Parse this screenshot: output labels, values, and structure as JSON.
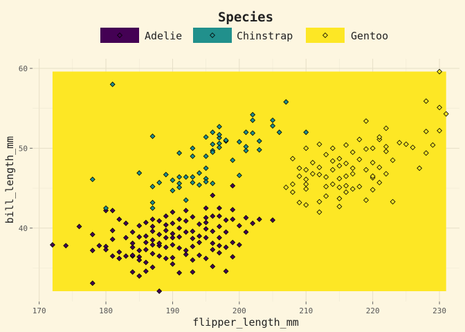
{
  "chart_data": {
    "type": "scatter",
    "xlabel": "flipper_length_mm",
    "ylabel": "bill_length_mm",
    "xlim": [
      169,
      233
    ],
    "ylim": [
      30.8,
      61.2
    ],
    "xticks": [
      170,
      180,
      190,
      200,
      210,
      220,
      230
    ],
    "yticks": [
      40,
      50,
      60
    ],
    "grid": true,
    "legend": {
      "title": "Species",
      "position": "top"
    },
    "background_rect": {
      "x": [
        172,
        231
      ],
      "y": [
        32.1,
        59.6
      ],
      "color": "#fde725"
    },
    "series": [
      {
        "name": "Adelie",
        "color": "#440154",
        "points": [
          [
            172,
            37.9
          ],
          [
            174,
            37.8
          ],
          [
            176,
            40.2
          ],
          [
            178,
            37.2
          ],
          [
            178,
            39.2
          ],
          [
            178,
            33.1
          ],
          [
            179,
            37.8
          ],
          [
            180,
            42.2
          ],
          [
            180,
            37.7
          ],
          [
            180,
            37.3
          ],
          [
            181,
            42.2
          ],
          [
            181,
            36.5
          ],
          [
            181,
            39.7
          ],
          [
            181,
            38.6
          ],
          [
            182,
            36.2
          ],
          [
            182,
            41.1
          ],
          [
            182,
            37.0
          ],
          [
            183,
            36.5
          ],
          [
            183,
            40.6
          ],
          [
            183,
            38.8
          ],
          [
            184,
            36.5
          ],
          [
            184,
            36.6
          ],
          [
            184,
            34.5
          ],
          [
            184,
            39.5
          ],
          [
            184,
            37.6
          ],
          [
            184,
            38.1
          ],
          [
            185,
            34.0
          ],
          [
            185,
            36.4
          ],
          [
            185,
            37.2
          ],
          [
            185,
            40.3
          ],
          [
            185,
            36.0
          ],
          [
            185,
            38.9
          ],
          [
            186,
            39.0
          ],
          [
            186,
            35.7
          ],
          [
            186,
            38.2
          ],
          [
            186,
            40.7
          ],
          [
            186,
            37.3
          ],
          [
            186,
            34.6
          ],
          [
            187,
            38.5
          ],
          [
            187,
            37.9
          ],
          [
            187,
            41.1
          ],
          [
            187,
            36.8
          ],
          [
            187,
            40.2
          ],
          [
            187,
            39.6
          ],
          [
            187,
            35.1
          ],
          [
            188,
            37.8
          ],
          [
            188,
            32.1
          ],
          [
            188,
            39.2
          ],
          [
            188,
            36.5
          ],
          [
            188,
            40.9
          ],
          [
            188,
            38.1
          ],
          [
            189,
            38.8
          ],
          [
            189,
            36.2
          ],
          [
            189,
            40.4
          ],
          [
            189,
            39.7
          ],
          [
            189,
            41.5
          ],
          [
            189,
            37.6
          ],
          [
            190,
            35.5
          ],
          [
            190,
            36.3
          ],
          [
            190,
            38.8
          ],
          [
            190,
            40.6
          ],
          [
            190,
            42.0
          ],
          [
            190,
            39.3
          ],
          [
            190,
            37.9
          ],
          [
            191,
            34.4
          ],
          [
            191,
            40.0
          ],
          [
            191,
            37.5
          ],
          [
            191,
            41.1
          ],
          [
            191,
            38.9
          ],
          [
            192,
            36.7
          ],
          [
            192,
            39.5
          ],
          [
            192,
            42.2
          ],
          [
            192,
            37.2
          ],
          [
            192,
            40.9
          ],
          [
            193,
            34.5
          ],
          [
            193,
            36.0
          ],
          [
            193,
            38.7
          ],
          [
            193,
            41.4
          ],
          [
            193,
            39.6
          ],
          [
            193,
            37.7
          ],
          [
            194,
            38.2
          ],
          [
            194,
            39.0
          ],
          [
            194,
            40.5
          ],
          [
            194,
            36.6
          ],
          [
            195,
            41.3
          ],
          [
            195,
            38.8
          ],
          [
            195,
            36.2
          ],
          [
            195,
            40.7
          ],
          [
            195,
            39.9
          ],
          [
            195,
            42.5
          ],
          [
            196,
            37.3
          ],
          [
            196,
            39.6
          ],
          [
            196,
            41.5
          ],
          [
            196,
            38.1
          ],
          [
            196,
            44.1
          ],
          [
            196,
            35.2
          ],
          [
            197,
            38.8
          ],
          [
            197,
            42.5
          ],
          [
            197,
            40.2
          ],
          [
            197,
            36.9
          ],
          [
            197,
            37.8
          ],
          [
            198,
            34.6
          ],
          [
            198,
            39.5
          ],
          [
            198,
            41.0
          ],
          [
            198,
            37.6
          ],
          [
            199,
            38.2
          ],
          [
            199,
            42.3
          ],
          [
            199,
            36.4
          ],
          [
            200,
            40.3
          ],
          [
            200,
            37.9
          ],
          [
            201,
            41.3
          ],
          [
            201,
            39.5
          ],
          [
            202,
            40.6
          ],
          [
            203,
            41.1
          ],
          [
            205,
            41.0
          ],
          [
            199,
            45.3
          ],
          [
            199,
            41.1
          ],
          [
            197,
            41.5
          ]
        ]
      },
      {
        "name": "Chinstrap",
        "color": "#21908c",
        "points": [
          [
            178,
            46.1
          ],
          [
            180,
            42.5
          ],
          [
            181,
            58.0
          ],
          [
            185,
            46.9
          ],
          [
            187,
            43.2
          ],
          [
            187,
            42.5
          ],
          [
            187,
            45.2
          ],
          [
            187,
            51.5
          ],
          [
            188,
            45.7
          ],
          [
            189,
            46.7
          ],
          [
            190,
            46.0
          ],
          [
            190,
            44.7
          ],
          [
            191,
            45.1
          ],
          [
            191,
            46.4
          ],
          [
            191,
            49.4
          ],
          [
            191,
            45.6
          ],
          [
            192,
            43.5
          ],
          [
            192,
            46.4
          ],
          [
            193,
            46.4
          ],
          [
            193,
            45.7
          ],
          [
            193,
            49.0
          ],
          [
            193,
            50.0
          ],
          [
            194,
            46.9
          ],
          [
            194,
            45.4
          ],
          [
            195,
            51.4
          ],
          [
            195,
            46.2
          ],
          [
            195,
            49.0
          ],
          [
            195,
            47.5
          ],
          [
            195,
            45.8
          ],
          [
            196,
            50.5
          ],
          [
            196,
            49.7
          ],
          [
            196,
            45.6
          ],
          [
            196,
            52.0
          ],
          [
            196,
            49.5
          ],
          [
            197,
            50.6
          ],
          [
            197,
            51.3
          ],
          [
            197,
            52.7
          ],
          [
            197,
            51.7
          ],
          [
            197,
            50.1
          ],
          [
            198,
            50.9
          ],
          [
            198,
            51.0
          ],
          [
            199,
            48.5
          ],
          [
            200,
            46.6
          ],
          [
            200,
            50.8
          ],
          [
            201,
            49.7
          ],
          [
            201,
            50.2
          ],
          [
            201,
            52.0
          ],
          [
            202,
            53.5
          ],
          [
            202,
            51.9
          ],
          [
            202,
            54.2
          ],
          [
            203,
            50.9
          ],
          [
            203,
            49.8
          ],
          [
            205,
            53.5
          ],
          [
            205,
            52.8
          ],
          [
            206,
            52.0
          ],
          [
            207,
            55.8
          ],
          [
            210,
            52.0
          ]
        ]
      },
      {
        "name": "Gentoo",
        "color": "#fde725",
        "points": [
          [
            207,
            45.1
          ],
          [
            208,
            44.5
          ],
          [
            208,
            45.5
          ],
          [
            208,
            48.7
          ],
          [
            209,
            47.5
          ],
          [
            209,
            43.2
          ],
          [
            209,
            46.5
          ],
          [
            210,
            50.0
          ],
          [
            210,
            47.3
          ],
          [
            210,
            46.1
          ],
          [
            210,
            42.9
          ],
          [
            210,
            44.9
          ],
          [
            211,
            46.8
          ],
          [
            211,
            48.2
          ],
          [
            212,
            43.3
          ],
          [
            212,
            47.6
          ],
          [
            212,
            46.7
          ],
          [
            212,
            50.5
          ],
          [
            213,
            45.2
          ],
          [
            213,
            49.2
          ],
          [
            213,
            46.4
          ],
          [
            213,
            44.0
          ],
          [
            214,
            47.3
          ],
          [
            214,
            50.0
          ],
          [
            214,
            45.5
          ],
          [
            214,
            48.4
          ],
          [
            215,
            46.2
          ],
          [
            215,
            48.7
          ],
          [
            215,
            43.7
          ],
          [
            215,
            47.8
          ],
          [
            215,
            45.1
          ],
          [
            215,
            42.7
          ],
          [
            216,
            46.5
          ],
          [
            216,
            50.4
          ],
          [
            216,
            48.1
          ],
          [
            216,
            45.3
          ],
          [
            217,
            44.9
          ],
          [
            217,
            47.5
          ],
          [
            217,
            49.5
          ],
          [
            217,
            46.8
          ],
          [
            218,
            45.2
          ],
          [
            218,
            51.1
          ],
          [
            218,
            48.6
          ],
          [
            219,
            43.5
          ],
          [
            219,
            47.3
          ],
          [
            219,
            49.9
          ],
          [
            219,
            53.4
          ],
          [
            220,
            46.3
          ],
          [
            220,
            50.0
          ],
          [
            220,
            44.8
          ],
          [
            220,
            48.2
          ],
          [
            221,
            47.6
          ],
          [
            221,
            51.1
          ],
          [
            221,
            45.7
          ],
          [
            222,
            46.8
          ],
          [
            222,
            49.6
          ],
          [
            222,
            52.5
          ],
          [
            222,
            50.2
          ],
          [
            223,
            43.3
          ],
          [
            223,
            48.5
          ],
          [
            224,
            50.7
          ],
          [
            225,
            50.5
          ],
          [
            226,
            50.1
          ],
          [
            228,
            52.1
          ],
          [
            228,
            49.4
          ],
          [
            228,
            55.9
          ],
          [
            229,
            50.4
          ],
          [
            230,
            59.6
          ],
          [
            230,
            52.2
          ],
          [
            230,
            55.1
          ],
          [
            231,
            54.3
          ],
          [
            221,
            51.4
          ],
          [
            220,
            46.5
          ],
          [
            216,
            44.5
          ],
          [
            212,
            42.0
          ],
          [
            210,
            45.5
          ],
          [
            227,
            47.5
          ]
        ]
      }
    ]
  }
}
